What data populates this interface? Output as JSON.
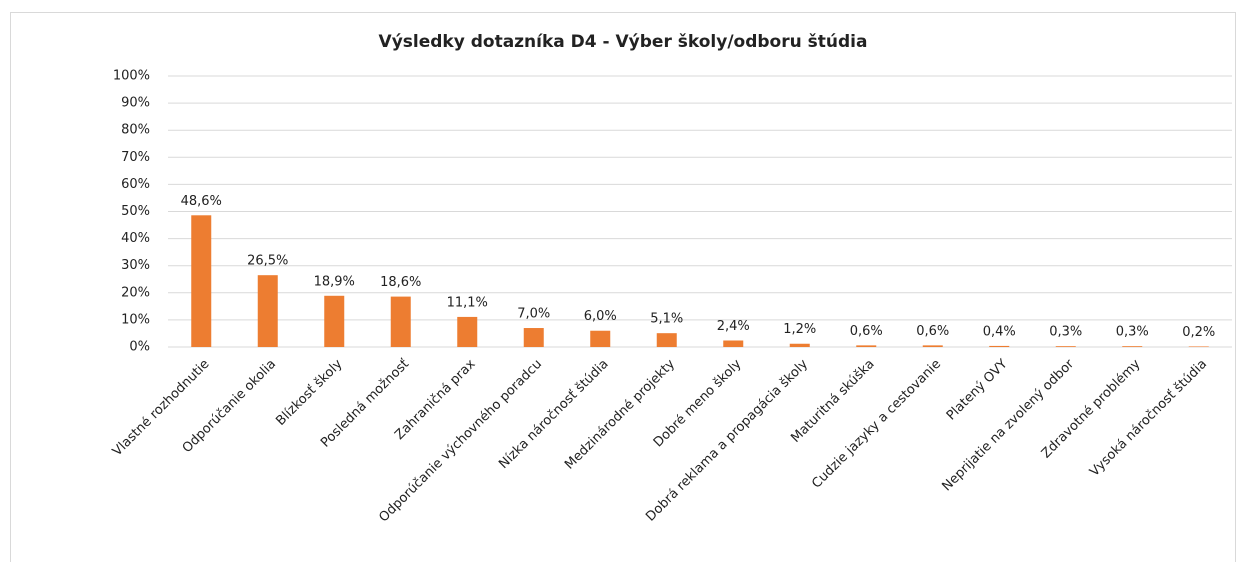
{
  "chart_data": {
    "type": "bar",
    "title": "Výsledky dotazníka D4 - Výber školy/odboru štúdia",
    "categories": [
      "Vlastné rozhodnutie",
      "Odporúčanie okolia",
      "Blízkosť školy",
      "Posledná možnosť",
      "Zahraničná prax",
      "Odporúčanie výchovného poradcu",
      "Nízka náročnosť štúdia",
      "Medzinárodné projekty",
      "Dobré meno školy",
      "Dobrá reklama a propagácia školy",
      "Maturitná skúška",
      "Cudzie jazyky a cestovanie",
      "Platený OVY",
      "Neprijatie na zvolený odbor",
      "Zdravotné problémy",
      "Vysoká náročnosť štúdia"
    ],
    "values": [
      48.6,
      26.5,
      18.9,
      18.6,
      11.1,
      7.0,
      6.0,
      5.1,
      2.4,
      1.2,
      0.6,
      0.6,
      0.4,
      0.3,
      0.3,
      0.2
    ],
    "value_labels": [
      "48,6%",
      "26,5%",
      "18,9%",
      "18,6%",
      "11,1%",
      "7,0%",
      "6,0%",
      "5,1%",
      "2,4%",
      "1,2%",
      "0,6%",
      "0,6%",
      "0,4%",
      "0,3%",
      "0,3%",
      "0,2%"
    ],
    "color": "#ed7d31",
    "ylim": [
      0,
      100
    ],
    "yticks": [
      {
        "value": 0,
        "label": "0%"
      },
      {
        "value": 10,
        "label": "10%"
      },
      {
        "value": 20,
        "label": "20%"
      },
      {
        "value": 30,
        "label": "30%"
      },
      {
        "value": 40,
        "label": "40%"
      },
      {
        "value": 50,
        "label": "50%"
      },
      {
        "value": 60,
        "label": "60%"
      },
      {
        "value": 70,
        "label": "70%"
      },
      {
        "value": 80,
        "label": "80%"
      },
      {
        "value": 90,
        "label": "90%"
      },
      {
        "value": 100,
        "label": "100%"
      }
    ],
    "grid": true
  }
}
